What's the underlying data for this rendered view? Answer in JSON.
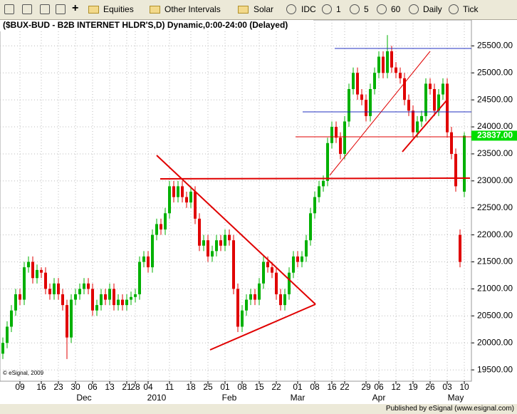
{
  "toolbar": {
    "items": [
      "Equities",
      "Other Intervals",
      "Solar",
      "IDC",
      "1",
      "5",
      "60",
      "Daily",
      "Tick"
    ]
  },
  "chart_data": {
    "type": "candlestick",
    "title": "($BUX-BUD - B2B INTERNET HLDR'S,D) Dynamic,0:00-24:00 (Delayed)",
    "ylim": [
      19290,
      25980
    ],
    "yticks": [
      {
        "value": 19500,
        "label": "19500.00"
      },
      {
        "value": 20000,
        "label": "20000.00"
      },
      {
        "value": 20500,
        "label": "20500.00"
      },
      {
        "value": 21000,
        "label": "21000.00"
      },
      {
        "value": 21500,
        "label": "21500.00"
      },
      {
        "value": 22000,
        "label": "22000.00"
      },
      {
        "value": 22500,
        "label": "22500.00"
      },
      {
        "value": 23000,
        "label": "23000.00"
      },
      {
        "value": 23500,
        "label": "23500.00"
      },
      {
        "value": 24000,
        "label": "24000.00"
      },
      {
        "value": 24500,
        "label": "24500.00"
      },
      {
        "value": 25000,
        "label": "25000.00"
      },
      {
        "value": 25500,
        "label": "25500.00"
      }
    ],
    "xticks": [
      {
        "value": 4,
        "label": "09"
      },
      {
        "value": 9,
        "label": "16"
      },
      {
        "value": 13,
        "label": "23"
      },
      {
        "value": 17,
        "label": "30"
      },
      {
        "value": 21,
        "label": "06"
      },
      {
        "value": 25,
        "label": "13"
      },
      {
        "value": 29,
        "label": "21"
      },
      {
        "value": 31,
        "label": "28"
      },
      {
        "value": 34,
        "label": "04"
      },
      {
        "value": 39,
        "label": "11"
      },
      {
        "value": 44,
        "label": "18"
      },
      {
        "value": 48,
        "label": "25"
      },
      {
        "value": 52,
        "label": "01"
      },
      {
        "value": 56,
        "label": "08"
      },
      {
        "value": 60,
        "label": "15"
      },
      {
        "value": 64,
        "label": "22"
      },
      {
        "value": 69,
        "label": "01"
      },
      {
        "value": 73,
        "label": "08"
      },
      {
        "value": 77,
        "label": "16"
      },
      {
        "value": 80,
        "label": "22"
      },
      {
        "value": 85,
        "label": "29"
      },
      {
        "value": 88,
        "label": "06"
      },
      {
        "value": 92,
        "label": "12"
      },
      {
        "value": 96,
        "label": "19"
      },
      {
        "value": 100,
        "label": "26"
      },
      {
        "value": 104,
        "label": "03"
      },
      {
        "value": 108,
        "label": "10"
      }
    ],
    "month_ticks": [
      {
        "value": 19,
        "label": "Dec"
      },
      {
        "value": 36,
        "label": "2010"
      },
      {
        "value": 53,
        "label": "Feb"
      },
      {
        "value": 69,
        "label": "Mar"
      },
      {
        "value": 88,
        "label": "Apr"
      },
      {
        "value": 106,
        "label": "May"
      }
    ],
    "candles": [
      [
        19800,
        20100,
        19700,
        20000
      ],
      [
        20000,
        20400,
        19900,
        20300
      ],
      [
        20300,
        20700,
        20200,
        20600
      ],
      [
        20600,
        21000,
        20500,
        20900
      ],
      [
        20900,
        21000,
        20700,
        20800
      ],
      [
        20800,
        21500,
        20700,
        21400
      ],
      [
        21400,
        21600,
        21300,
        21500
      ],
      [
        21500,
        21600,
        21100,
        21200
      ],
      [
        21200,
        21450,
        21100,
        21350
      ],
      [
        21350,
        21400,
        21200,
        21300
      ],
      [
        21300,
        21400,
        20900,
        21000
      ],
      [
        21000,
        21100,
        20800,
        20900
      ],
      [
        20900,
        21200,
        20800,
        21100
      ],
      [
        21100,
        21200,
        20800,
        20900
      ],
      [
        20900,
        21000,
        20600,
        20700
      ],
      [
        20700,
        20800,
        19700,
        20100
      ],
      [
        20100,
        20900,
        20000,
        20800
      ],
      [
        20800,
        21000,
        20700,
        20900
      ],
      [
        20900,
        21100,
        20800,
        21000
      ],
      [
        21000,
        21200,
        20900,
        21100
      ],
      [
        21100,
        21200,
        20900,
        21000
      ],
      [
        21000,
        21100,
        20500,
        20600
      ],
      [
        20600,
        20800,
        20500,
        20700
      ],
      [
        20700,
        21000,
        20600,
        20900
      ],
      [
        20900,
        21000,
        20700,
        20800
      ],
      [
        20800,
        21100,
        20700,
        21000
      ],
      [
        21000,
        21100,
        20600,
        20700
      ],
      [
        20700,
        20900,
        20600,
        20800
      ],
      [
        20800,
        20900,
        20600,
        20700
      ],
      [
        20700,
        20900,
        20600,
        20800
      ],
      [
        20800,
        20950,
        20700,
        20850
      ],
      [
        20850,
        21000,
        20750,
        20900
      ],
      [
        20900,
        21600,
        20800,
        21500
      ],
      [
        21500,
        21700,
        21400,
        21600
      ],
      [
        21600,
        21700,
        21300,
        21400
      ],
      [
        21400,
        22100,
        21300,
        22000
      ],
      [
        22000,
        22300,
        21900,
        22200
      ],
      [
        22200,
        22300,
        22000,
        22100
      ],
      [
        22100,
        22500,
        22000,
        22400
      ],
      [
        22400,
        23000,
        22300,
        22900
      ],
      [
        22900,
        23000,
        22600,
        22700
      ],
      [
        22700,
        23000,
        22600,
        22900
      ],
      [
        22900,
        23000,
        22600,
        22700
      ],
      [
        22700,
        22800,
        22500,
        22600
      ],
      [
        22600,
        22900,
        22500,
        22800
      ],
      [
        22800,
        22900,
        22200,
        22300
      ],
      [
        22300,
        22400,
        21700,
        21800
      ],
      [
        21800,
        22000,
        21700,
        21900
      ],
      [
        21900,
        22000,
        21500,
        21600
      ],
      [
        21600,
        21800,
        21500,
        21700
      ],
      [
        21700,
        22000,
        21600,
        21900
      ],
      [
        21900,
        22000,
        21700,
        21800
      ],
      [
        21800,
        22100,
        21700,
        22000
      ],
      [
        22000,
        22100,
        21800,
        21900
      ],
      [
        21900,
        22000,
        20900,
        21000
      ],
      [
        21000,
        21100,
        20200,
        20300
      ],
      [
        20300,
        20700,
        20200,
        20600
      ],
      [
        20600,
        20900,
        20500,
        20800
      ],
      [
        20800,
        21000,
        20700,
        20900
      ],
      [
        20900,
        21000,
        20700,
        20800
      ],
      [
        20800,
        21200,
        20700,
        21100
      ],
      [
        21100,
        21600,
        21000,
        21500
      ],
      [
        21500,
        21600,
        21300,
        21400
      ],
      [
        21400,
        21500,
        21200,
        21300
      ],
      [
        21300,
        21400,
        20800,
        20900
      ],
      [
        20900,
        21000,
        20600,
        20700
      ],
      [
        20700,
        21000,
        20600,
        20900
      ],
      [
        20900,
        21400,
        20800,
        21300
      ],
      [
        21300,
        21700,
        21200,
        21600
      ],
      [
        21600,
        21700,
        21400,
        21500
      ],
      [
        21500,
        21700,
        21400,
        21600
      ],
      [
        21600,
        22000,
        21500,
        21900
      ],
      [
        21900,
        22500,
        21800,
        22400
      ],
      [
        22400,
        22800,
        22300,
        22700
      ],
      [
        22700,
        23000,
        22600,
        22900
      ],
      [
        22900,
        23100,
        22800,
        23000
      ],
      [
        23000,
        23800,
        22900,
        23700
      ],
      [
        23700,
        24100,
        23600,
        24000
      ],
      [
        24000,
        24100,
        23700,
        23800
      ],
      [
        23800,
        23900,
        23400,
        23500
      ],
      [
        23500,
        24200,
        23400,
        24100
      ],
      [
        24100,
        24800,
        24000,
        24700
      ],
      [
        24700,
        25100,
        24600,
        25000
      ],
      [
        25000,
        25100,
        24500,
        24600
      ],
      [
        24600,
        24700,
        24400,
        24500
      ],
      [
        24500,
        24600,
        24100,
        24200
      ],
      [
        24200,
        24800,
        24100,
        24700
      ],
      [
        24700,
        25100,
        24600,
        25000
      ],
      [
        25000,
        25400,
        24900,
        25300
      ],
      [
        25300,
        25400,
        24900,
        25000
      ],
      [
        25000,
        25700,
        24900,
        25400
      ],
      [
        25400,
        25500,
        25000,
        25100
      ],
      [
        25100,
        25200,
        24900,
        25000
      ],
      [
        25000,
        25100,
        24800,
        24900
      ],
      [
        24900,
        25000,
        24400,
        24500
      ],
      [
        24500,
        24600,
        24200,
        24300
      ],
      [
        24300,
        24400,
        23800,
        23900
      ],
      [
        23900,
        24200,
        23800,
        24100
      ],
      [
        24100,
        24300,
        24000,
        24200
      ],
      [
        24200,
        24900,
        24100,
        24800
      ],
      [
        24800,
        24900,
        24600,
        24700
      ],
      [
        24700,
        24800,
        24200,
        24300
      ],
      [
        24300,
        24700,
        24200,
        24600
      ],
      [
        24600,
        24900,
        24500,
        24800
      ],
      [
        24800,
        24900,
        23800,
        23900
      ],
      [
        23900,
        24000,
        23400,
        23500
      ],
      [
        23500,
        23600,
        22800,
        22900
      ],
      [
        22000,
        22100,
        21400,
        21500
      ],
      [
        22800,
        23900,
        22700,
        23837
      ]
    ],
    "up_color": "#00b000",
    "down_color": "#e00000",
    "grid": true,
    "last_price": {
      "value": 23837,
      "label": "23837.00"
    },
    "last_price_color": "#00dd00",
    "watermark": "© eSignal, 2009"
  },
  "footer": "Published by eSignal (www.esignal.com)"
}
